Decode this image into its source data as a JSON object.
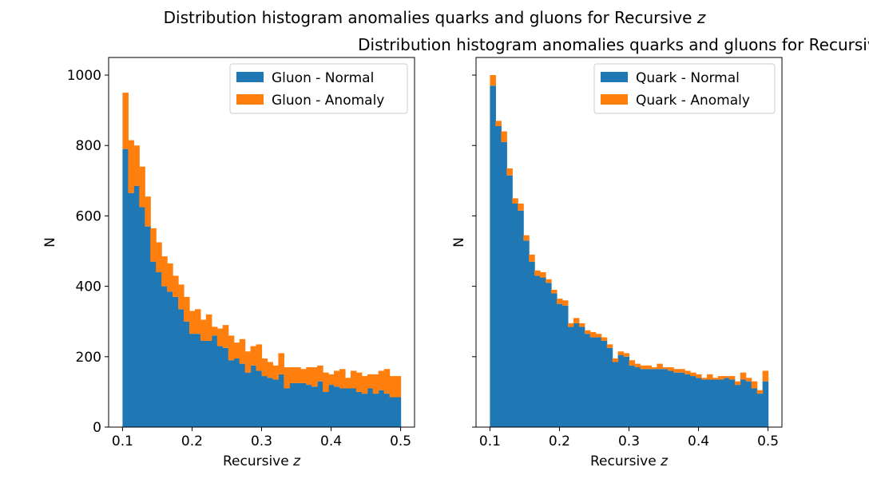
{
  "figure": {
    "suptitle": "Distribution histogram anomalies quarks and gluons for Recursive z",
    "colors": {
      "normal": "#1f77b4",
      "anomaly": "#ff7f0e"
    }
  },
  "chart_data": [
    {
      "type": "bar",
      "stacked": true,
      "histogram": true,
      "title": "",
      "xlabel": "Recursive z",
      "ylabel": "N",
      "xlim": [
        0.08,
        0.52
      ],
      "ylim": [
        0,
        1050
      ],
      "xticks": [
        "0.1",
        "0.2",
        "0.3",
        "0.4",
        "0.5"
      ],
      "yticks": [
        "0",
        "200",
        "400",
        "600",
        "800",
        "1000"
      ],
      "legend_position": "top-right",
      "bin_range": [
        0.1,
        0.5
      ],
      "bins": 50,
      "series": [
        {
          "name": "Gluon - Normal",
          "color": "#1f77b4",
          "values": [
            790,
            665,
            685,
            625,
            570,
            470,
            440,
            400,
            385,
            370,
            335,
            300,
            265,
            265,
            245,
            245,
            260,
            230,
            225,
            190,
            195,
            180,
            155,
            175,
            160,
            145,
            140,
            135,
            150,
            110,
            125,
            125,
            125,
            120,
            115,
            130,
            100,
            120,
            115,
            110,
            110,
            110,
            100,
            95,
            110,
            95,
            105,
            95,
            85,
            85
          ]
        },
        {
          "name": "Gluon - Anomaly",
          "color": "#ff7f0e",
          "values": [
            160,
            150,
            115,
            115,
            85,
            95,
            85,
            85,
            80,
            60,
            70,
            70,
            65,
            70,
            60,
            75,
            25,
            50,
            65,
            70,
            45,
            70,
            60,
            55,
            75,
            50,
            45,
            40,
            60,
            60,
            45,
            45,
            40,
            50,
            55,
            45,
            55,
            30,
            45,
            55,
            30,
            50,
            55,
            50,
            40,
            55,
            55,
            70,
            60,
            60
          ]
        }
      ]
    },
    {
      "type": "bar",
      "stacked": true,
      "histogram": true,
      "title": "Distribution histogram anomalies quarks and gluons for Recursive z",
      "xlabel": "Recursive z",
      "ylabel": "N",
      "xlim": [
        0.08,
        0.52
      ],
      "ylim": [
        0,
        1050
      ],
      "xticks": [
        "0.1",
        "0.2",
        "0.3",
        "0.4",
        "0.5"
      ],
      "yticks": [
        "0",
        "200",
        "400",
        "600",
        "800",
        "1000"
      ],
      "legend_position": "top-right",
      "bin_range": [
        0.1,
        0.5
      ],
      "bins": 50,
      "series": [
        {
          "name": "Quark - Normal",
          "color": "#1f77b4",
          "values": [
            970,
            855,
            810,
            715,
            635,
            615,
            530,
            470,
            430,
            425,
            410,
            380,
            350,
            345,
            285,
            295,
            285,
            265,
            255,
            255,
            245,
            225,
            185,
            205,
            200,
            175,
            170,
            165,
            165,
            165,
            165,
            165,
            160,
            155,
            155,
            150,
            145,
            140,
            135,
            135,
            135,
            135,
            140,
            135,
            120,
            135,
            130,
            110,
            95,
            130
          ]
        },
        {
          "name": "Quark - Anomaly",
          "color": "#ff7f0e",
          "values": [
            30,
            15,
            30,
            20,
            15,
            20,
            15,
            20,
            15,
            15,
            10,
            10,
            15,
            15,
            10,
            15,
            10,
            10,
            15,
            10,
            10,
            10,
            10,
            10,
            10,
            15,
            10,
            10,
            10,
            5,
            15,
            5,
            10,
            10,
            10,
            10,
            10,
            10,
            5,
            15,
            5,
            10,
            5,
            10,
            10,
            20,
            10,
            20,
            10,
            30
          ]
        }
      ]
    }
  ]
}
